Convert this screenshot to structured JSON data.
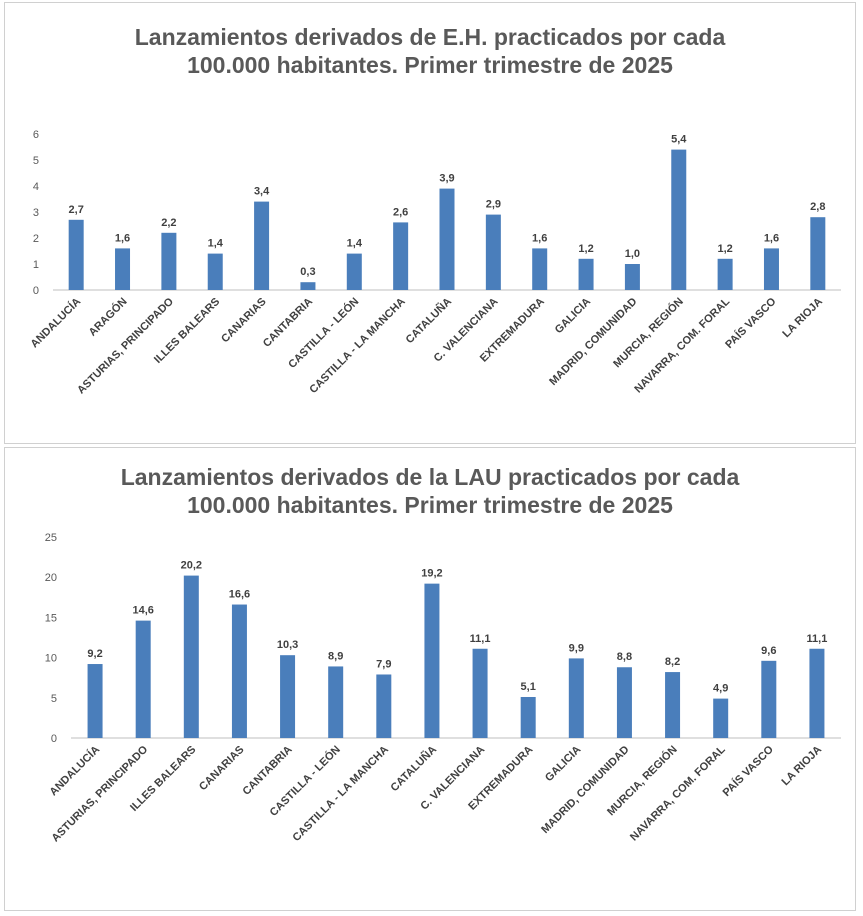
{
  "colors": {
    "bar": "#4a7ebb",
    "axis": "#bfbfbf",
    "text": "#595959"
  },
  "chart_data": [
    {
      "type": "bar",
      "title_line1": "Lanzamientos derivados de E.H. practicados por cada",
      "title_line2": "100.000 habitantes. Primer trimestre de 2025",
      "categories": [
        "ANDALUCÍA",
        "ARAGÓN",
        "ASTURIAS, PRINCIPADO",
        "ILLES BALEARS",
        "CANARIAS",
        "CANTABRIA",
        "CASTILLA - LEÓN",
        "CASTILLA - LA MANCHA",
        "CATALUÑA",
        "C. VALENCIANA",
        "EXTREMADURA",
        "GALICIA",
        "MADRID, COMUNIDAD",
        "MURCIA, REGIÓN",
        "NAVARRA, COM. FORAL",
        "PAÍS VASCO",
        "LA RIOJA"
      ],
      "values": [
        2.7,
        1.6,
        2.2,
        1.4,
        3.4,
        0.3,
        1.4,
        2.6,
        3.9,
        2.9,
        1.6,
        1.2,
        1.0,
        5.4,
        1.2,
        1.6,
        2.8
      ],
      "value_labels": [
        "2,7",
        "1,6",
        "2,2",
        "1,4",
        "3,4",
        "0,3",
        "1,4",
        "2,6",
        "3,9",
        "2,9",
        "1,6",
        "1,2",
        "1,0",
        "5,4",
        "1,2",
        "1,6",
        "2,8"
      ],
      "yticks": [
        "0",
        "1",
        "2",
        "3",
        "4",
        "5",
        "6"
      ],
      "ylim": [
        0,
        6
      ],
      "xlabel": "",
      "ylabel": ""
    },
    {
      "type": "bar",
      "title_line1": "Lanzamientos derivados de la LAU practicados por cada",
      "title_line2": "100.000 habitantes. Primer trimestre de 2025",
      "categories": [
        "ANDALUCÍA",
        "ASTURIAS, PRINCIPADO",
        "ILLES BALEARS",
        "CANARIAS",
        "CANTABRIA",
        "CASTILLA - LEÓN",
        "CASTILLA - LA MANCHA",
        "CATALUÑA",
        "C. VALENCIANA",
        "EXTREMADURA",
        "GALICIA",
        "MADRID, COMUNIDAD",
        "MURCIA, REGIÓN",
        "NAVARRA, COM. FORAL",
        "PAÍS VASCO",
        "LA RIOJA"
      ],
      "values": [
        9.2,
        14.6,
        20.2,
        16.6,
        10.3,
        8.9,
        7.9,
        19.2,
        11.1,
        5.1,
        9.9,
        8.8,
        8.2,
        4.9,
        9.6,
        11.1
      ],
      "value_labels": [
        "9,2",
        "14,6",
        "20,2",
        "16,6",
        "10,3",
        "8,9",
        "7,9",
        "19,2",
        "11,1",
        "5,1",
        "9,9",
        "8,8",
        "8,2",
        "4,9",
        "9,6",
        "11,1"
      ],
      "yticks": [
        "0",
        "5",
        "10",
        "15",
        "20",
        "25"
      ],
      "ylim": [
        0,
        25
      ],
      "xlabel": "",
      "ylabel": ""
    }
  ]
}
